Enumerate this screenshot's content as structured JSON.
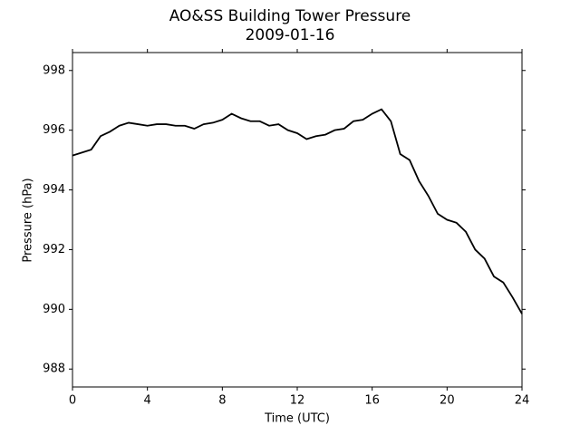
{
  "chart_data": {
    "type": "line",
    "title": "AO&SS Building Tower Pressure",
    "subtitle": "2009-01-16",
    "x_label": "Time (UTC)",
    "y_label": "Pressure (hPa)",
    "x": [
      0,
      0.5,
      1,
      1.5,
      2,
      2.5,
      3,
      3.5,
      4,
      4.5,
      5,
      5.5,
      6,
      6.5,
      7,
      7.5,
      8,
      8.5,
      9,
      9.5,
      10,
      10.5,
      11,
      11.5,
      12,
      12.5,
      13,
      13.5,
      14,
      14.5,
      15,
      15.5,
      16,
      16.5,
      17,
      17.5,
      18,
      18.5,
      19,
      19.5,
      20,
      20.5,
      21,
      21.5,
      22,
      22.5,
      23,
      23.5,
      24
    ],
    "series": [
      {
        "name": "Pressure",
        "color": "#000000",
        "values": [
          995.15,
          995.25,
          995.35,
          995.8,
          995.95,
          996.15,
          996.25,
          996.2,
          996.15,
          996.2,
          996.2,
          996.15,
          996.15,
          996.05,
          996.2,
          996.25,
          996.35,
          996.55,
          996.4,
          996.3,
          996.3,
          996.15,
          996.2,
          996.0,
          995.9,
          995.7,
          995.8,
          995.85,
          996.0,
          996.05,
          996.3,
          996.35,
          996.55,
          996.7,
          996.3,
          995.2,
          995.0,
          994.3,
          993.8,
          993.2,
          993.0,
          992.9,
          992.6,
          992.0,
          991.7,
          991.1,
          990.9,
          990.4,
          989.85
        ]
      }
    ],
    "xlim": [
      0,
      24
    ],
    "xticks": [
      0,
      4,
      8,
      12,
      16,
      20,
      24
    ],
    "ylim": [
      987.4,
      998.6
    ],
    "yticks": [
      988,
      990,
      992,
      994,
      996,
      998
    ]
  }
}
